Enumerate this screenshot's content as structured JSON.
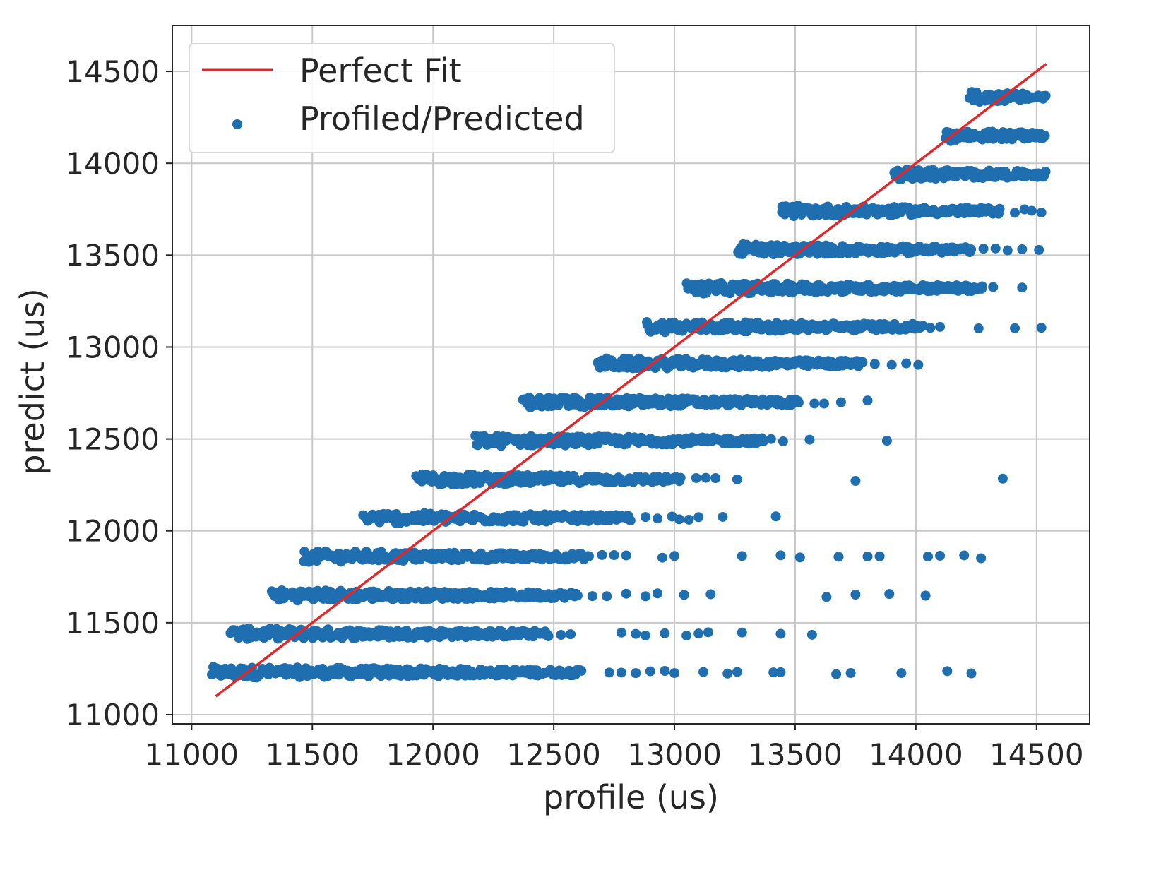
{
  "chart_data": {
    "type": "scatter",
    "title": "",
    "xlabel": "profile (us)",
    "ylabel": "predict (us)",
    "xlim": [
      10920,
      14720
    ],
    "ylim": [
      10950,
      14750
    ],
    "xticks": [
      11000,
      11500,
      12000,
      12500,
      13000,
      13500,
      14000,
      14500
    ],
    "yticks": [
      11000,
      11500,
      12000,
      12500,
      13000,
      13500,
      14000,
      14500
    ],
    "grid": true,
    "legend_position": "top-left",
    "colors": {
      "scatter": "#1f6fb0",
      "fit_line": "#e3262a",
      "grid": "#c8c8c8",
      "axis": "#262626"
    },
    "series": [
      {
        "name": "Perfect Fit",
        "kind": "line",
        "x": [
          11100,
          14540
        ],
        "y": [
          11100,
          14540
        ]
      },
      {
        "name": "Profiled/Predicted",
        "kind": "scatter",
        "bands": [
          {
            "y": 11230,
            "x_dense": [
              11080,
              12620
            ],
            "x_sparse": [
              12730,
              12780,
              12840,
              12900,
              12960,
              13000,
              13120,
              13220,
              13260,
              13410,
              13440,
              13670,
              13730,
              13940,
              14130,
              14230
            ]
          },
          {
            "y": 11440,
            "x_dense": [
              11160,
              12480
            ],
            "x_sparse": [
              12530,
              12570,
              12780,
              12840,
              12880,
              12960,
              13050,
              13100,
              13140,
              13280,
              13440,
              13570
            ]
          },
          {
            "y": 11650,
            "x_dense": [
              11330,
              12600
            ],
            "x_sparse": [
              12660,
              12720,
              12800,
              12880,
              12930,
              13040,
              13150,
              13630,
              13750,
              13890,
              14040
            ]
          },
          {
            "y": 11860,
            "x_dense": [
              11460,
              12650
            ],
            "x_sparse": [
              12700,
              12750,
              12800,
              12950,
              13000,
              13280,
              13440,
              13520,
              13680,
              13800,
              13850,
              14050,
              14100,
              14200,
              14270
            ]
          },
          {
            "y": 12070,
            "x_dense": [
              11710,
              12820
            ],
            "x_sparse": [
              12880,
              12930,
              12990,
              13020,
              13060,
              13100,
              13200,
              13420
            ]
          },
          {
            "y": 12280,
            "x_dense": [
              11930,
              13030
            ],
            "x_sparse": [
              13090,
              13130,
              13170,
              13260,
              13750,
              14360
            ]
          },
          {
            "y": 12490,
            "x_dense": [
              12170,
              13370
            ],
            "x_sparse": [
              13400,
              13450,
              13560,
              13880
            ]
          },
          {
            "y": 12700,
            "x_dense": [
              12370,
              13520
            ],
            "x_sparse": [
              13580,
              13620,
              13690,
              13800
            ]
          },
          {
            "y": 12910,
            "x_dense": [
              12680,
              13780
            ],
            "x_sparse": [
              13830,
              13900,
              13960,
              14010
            ]
          },
          {
            "y": 13110,
            "x_dense": [
              12880,
              14030
            ],
            "x_sparse": [
              14060,
              14100,
              14260,
              14410,
              14520
            ]
          },
          {
            "y": 13320,
            "x_dense": [
              13050,
              14280
            ],
            "x_sparse": [
              14320,
              14440
            ]
          },
          {
            "y": 13530,
            "x_dense": [
              13260,
              14230
            ],
            "x_sparse": [
              14280,
              14330,
              14380,
              14440,
              14510
            ]
          },
          {
            "y": 13740,
            "x_dense": [
              13440,
              14350
            ],
            "x_sparse": [
              14410,
              14450,
              14480,
              14520
            ]
          },
          {
            "y": 13940,
            "x_dense": [
              13910,
              14540
            ],
            "x_sparse": []
          },
          {
            "y": 14150,
            "x_dense": [
              14120,
              14540
            ],
            "x_sparse": []
          },
          {
            "y": 14360,
            "x_dense": [
              14220,
              14540
            ],
            "x_sparse": [
              14530
            ]
          }
        ]
      }
    ]
  }
}
